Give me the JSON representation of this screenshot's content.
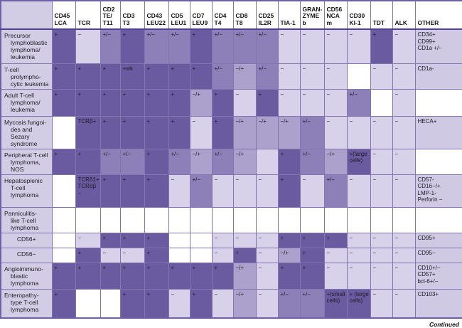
{
  "title": "T-cell lymphoma immunophenotype table",
  "colors": {
    "dark": "#6a5ba0",
    "med": "#8d7fb8",
    "medlight": "#aca0cd",
    "light": "#d7d2e9",
    "label": "#d2cce4",
    "other": "#cfc9e3",
    "white": "#ffffff",
    "border": "#8275b0",
    "outer": "#6f61a6",
    "header_sep": "#4f4190",
    "header_bg": "#ffffff"
  },
  "header": {
    "corner": "",
    "columns": [
      {
        "key": "cd45-lca",
        "label": "CD45\nLCA"
      },
      {
        "key": "tcr",
        "label": "TCR"
      },
      {
        "key": "cd2-te-t11",
        "label": "CD2\nTE/\nT11"
      },
      {
        "key": "cd3-t3",
        "label": "CD3 T3"
      },
      {
        "key": "cd43-leu22",
        "label": "CD43\nLEU22"
      },
      {
        "key": "cd5-leu1",
        "label": "CD5\nLEU1"
      },
      {
        "key": "cd7-leu9",
        "label": "CD7\nLEU9"
      },
      {
        "key": "cd4-t4",
        "label": "CD4\nT4"
      },
      {
        "key": "cd8-t8",
        "label": "CD8 T8"
      },
      {
        "key": "cd25-il2r",
        "label": "CD25\nIL2R"
      },
      {
        "key": "tia-1",
        "label": "TIA-1"
      },
      {
        "key": "granzyme-b",
        "label": "GRAN-\nZYME\nb"
      },
      {
        "key": "cd56-ncam",
        "label": "CD56\nNCA\nm"
      },
      {
        "key": "cd30-ki1",
        "label": "CD30\nKI-1"
      },
      {
        "key": "tdt",
        "label": "TDT"
      },
      {
        "key": "alk",
        "label": "ALK"
      },
      {
        "key": "other",
        "label": "OTHER"
      }
    ]
  },
  "rows": [
    {
      "id": "precursor-lymphoblastic",
      "label": "Precursor\nlymphoblastic\nlymphoma/\nleukemia",
      "center": false,
      "cells": [
        {
          "t": "+",
          "s": "d"
        },
        {
          "t": "−",
          "s": "l"
        },
        {
          "t": "+/−",
          "s": "m"
        },
        {
          "t": "+",
          "s": "d"
        },
        {
          "t": "+/−",
          "s": "m"
        },
        {
          "t": "+/−",
          "s": "m"
        },
        {
          "t": "+",
          "s": "d"
        },
        {
          "t": "+/−",
          "s": "m"
        },
        {
          "t": "+/−",
          "s": "m"
        },
        {
          "t": "+/−",
          "s": "m"
        },
        {
          "t": "−",
          "s": "l"
        },
        {
          "t": "−",
          "s": "l"
        },
        {
          "t": "−",
          "s": "l"
        },
        {
          "t": "−",
          "s": "l"
        },
        {
          "t": "+",
          "s": "d"
        },
        {
          "t": "−",
          "s": "l"
        },
        {
          "t": "CD34+\nCD99+\nCD1a +/−",
          "s": "o"
        }
      ]
    },
    {
      "id": "t-cell-prolymphocytic",
      "label": "T-cell prolympho-\ncytic leukemia",
      "center": false,
      "cells": [
        {
          "t": "+",
          "s": "d"
        },
        {
          "t": "+",
          "s": "d"
        },
        {
          "t": "+",
          "s": "d"
        },
        {
          "t": "+wk",
          "s": "d"
        },
        {
          "t": "+",
          "s": "d"
        },
        {
          "t": "+",
          "s": "d"
        },
        {
          "t": "+",
          "s": "d"
        },
        {
          "t": "+/−",
          "s": "m"
        },
        {
          "t": "−/+",
          "s": "ml"
        },
        {
          "t": "+/−",
          "s": "m"
        },
        {
          "t": "−",
          "s": "l"
        },
        {
          "t": "−",
          "s": "l"
        },
        {
          "t": "−",
          "s": "l"
        },
        {
          "t": "",
          "s": "w"
        },
        {
          "t": "−",
          "s": "l"
        },
        {
          "t": "−",
          "s": "l"
        },
        {
          "t": "CD1a-",
          "s": "o"
        }
      ]
    },
    {
      "id": "adult-t-cell",
      "label": "Adult T-cell\nlymphoma/\nleukemia",
      "center": false,
      "cells": [
        {
          "t": "+",
          "s": "d"
        },
        {
          "t": "+",
          "s": "d"
        },
        {
          "t": "+",
          "s": "d"
        },
        {
          "t": "+",
          "s": "d"
        },
        {
          "t": "+",
          "s": "d"
        },
        {
          "t": "+",
          "s": "d"
        },
        {
          "t": "−/+",
          "s": "ml"
        },
        {
          "t": "+",
          "s": "d"
        },
        {
          "t": "−",
          "s": "l"
        },
        {
          "t": "+",
          "s": "d"
        },
        {
          "t": "−",
          "s": "l"
        },
        {
          "t": "−",
          "s": "l"
        },
        {
          "t": "−",
          "s": "l"
        },
        {
          "t": "+/−",
          "s": "m"
        },
        {
          "t": "",
          "s": "w"
        },
        {
          "t": "−",
          "s": "l"
        },
        {
          "t": "",
          "s": "w"
        }
      ]
    },
    {
      "id": "mycosis-fungoides",
      "label": "Mycosis fungoi-\ndes and Sezary\nsyndrome",
      "center": false,
      "cells": [
        {
          "t": "",
          "s": "w"
        },
        {
          "t": "TCRβ+",
          "s": "d"
        },
        {
          "t": "+",
          "s": "d"
        },
        {
          "t": "+",
          "s": "d"
        },
        {
          "t": "+",
          "s": "d"
        },
        {
          "t": "+",
          "s": "d"
        },
        {
          "t": "−",
          "s": "l"
        },
        {
          "t": "+",
          "s": "d"
        },
        {
          "t": "−/+",
          "s": "ml"
        },
        {
          "t": "−/+",
          "s": "ml"
        },
        {
          "t": "−/+",
          "s": "ml"
        },
        {
          "t": "+/−",
          "s": "m"
        },
        {
          "t": "−",
          "s": "l"
        },
        {
          "t": "−",
          "s": "l"
        },
        {
          "t": "−",
          "s": "l"
        },
        {
          "t": "−",
          "s": "l"
        },
        {
          "t": "HECA+",
          "s": "o"
        }
      ]
    },
    {
      "id": "peripheral-t-cell-nos",
      "label": "Peripheral T-cell\nlymphoma,\nNOS",
      "center": false,
      "cells": [
        {
          "t": "+",
          "s": "d"
        },
        {
          "t": "+",
          "s": "d"
        },
        {
          "t": "+/−",
          "s": "m"
        },
        {
          "t": "+/−",
          "s": "m"
        },
        {
          "t": "+",
          "s": "d"
        },
        {
          "t": "+/−",
          "s": "m"
        },
        {
          "t": "−/+",
          "s": "ml"
        },
        {
          "t": "+/−",
          "s": "m"
        },
        {
          "t": "−/+",
          "s": "ml"
        },
        {
          "t": "",
          "s": "l"
        },
        {
          "t": "+",
          "s": "d"
        },
        {
          "t": "+/−",
          "s": "m"
        },
        {
          "t": "−/+",
          "s": "ml"
        },
        {
          "t": "+(large cells)",
          "s": "d"
        },
        {
          "t": "−",
          "s": "l"
        },
        {
          "t": "−",
          "s": "l"
        },
        {
          "t": "",
          "s": "w"
        }
      ]
    },
    {
      "id": "hepatosplenic",
      "label": "Hepatosplenic\nT-cell\nlymphoma",
      "center": false,
      "cells": [
        {
          "t": "",
          "s": "w"
        },
        {
          "t": "TCRδ1+\nTCRαβ−",
          "s": "d"
        },
        {
          "t": "+",
          "s": "d"
        },
        {
          "t": "+",
          "s": "d"
        },
        {
          "t": "+",
          "s": "d"
        },
        {
          "t": "−",
          "s": "l"
        },
        {
          "t": "+/−",
          "s": "m"
        },
        {
          "t": "−",
          "s": "l"
        },
        {
          "t": "−",
          "s": "l"
        },
        {
          "t": "−",
          "s": "l"
        },
        {
          "t": "+",
          "s": "d"
        },
        {
          "t": "−",
          "s": "l"
        },
        {
          "t": "+/−",
          "s": "m"
        },
        {
          "t": "−",
          "s": "l"
        },
        {
          "t": "−",
          "s": "l"
        },
        {
          "t": "−",
          "s": "l"
        },
        {
          "t": "CD57-\nCD16−/+\nLMP-1-\nPerforin −",
          "s": "o"
        }
      ]
    },
    {
      "id": "panniculitis-like",
      "label": "Panniculitis-\nlike T-cell\nlymphoma",
      "center": false,
      "cells": [
        {
          "t": "",
          "s": "w"
        },
        {
          "t": "",
          "s": "w"
        },
        {
          "t": "",
          "s": "w"
        },
        {
          "t": "",
          "s": "w"
        },
        {
          "t": "",
          "s": "w"
        },
        {
          "t": "",
          "s": "w"
        },
        {
          "t": "",
          "s": "w"
        },
        {
          "t": "",
          "s": "w"
        },
        {
          "t": "",
          "s": "w"
        },
        {
          "t": "",
          "s": "w"
        },
        {
          "t": "",
          "s": "w"
        },
        {
          "t": "",
          "s": "w"
        },
        {
          "t": "",
          "s": "w"
        },
        {
          "t": "",
          "s": "w"
        },
        {
          "t": "",
          "s": "w"
        },
        {
          "t": "",
          "s": "w"
        },
        {
          "t": "",
          "s": "w"
        }
      ]
    },
    {
      "id": "cd56-positive",
      "label": "CD56+",
      "center": true,
      "cells": [
        {
          "t": "",
          "s": "w"
        },
        {
          "t": "−",
          "s": "l"
        },
        {
          "t": "+",
          "s": "d"
        },
        {
          "t": "+",
          "s": "d"
        },
        {
          "t": "+",
          "s": "d"
        },
        {
          "t": "",
          "s": "w"
        },
        {
          "t": "",
          "s": "w"
        },
        {
          "t": "−",
          "s": "l"
        },
        {
          "t": "−",
          "s": "l"
        },
        {
          "t": "−",
          "s": "l"
        },
        {
          "t": "+",
          "s": "d"
        },
        {
          "t": "+",
          "s": "d"
        },
        {
          "t": "+",
          "s": "d"
        },
        {
          "t": "−",
          "s": "l"
        },
        {
          "t": "−",
          "s": "l"
        },
        {
          "t": "−",
          "s": "l"
        },
        {
          "t": "CD95+",
          "s": "o"
        }
      ]
    },
    {
      "id": "cd56-negative",
      "label": "CD56−",
      "center": true,
      "cells": [
        {
          "t": "",
          "s": "w"
        },
        {
          "t": "+",
          "s": "d"
        },
        {
          "t": "−",
          "s": "l"
        },
        {
          "t": "−",
          "s": "l"
        },
        {
          "t": "+",
          "s": "d"
        },
        {
          "t": "",
          "s": "w"
        },
        {
          "t": "",
          "s": "w"
        },
        {
          "t": "−",
          "s": "l"
        },
        {
          "t": "+",
          "s": "d"
        },
        {
          "t": "−",
          "s": "l"
        },
        {
          "t": "−/+",
          "s": "ml"
        },
        {
          "t": "+",
          "s": "d"
        },
        {
          "t": "−",
          "s": "l"
        },
        {
          "t": "−",
          "s": "l"
        },
        {
          "t": "−",
          "s": "l"
        },
        {
          "t": "−",
          "s": "l"
        },
        {
          "t": "CD95−",
          "s": "o"
        }
      ]
    },
    {
      "id": "angioimmunoblastic",
      "label": "Angioimmuno-\nblastic\nlymphoma",
      "center": false,
      "cells": [
        {
          "t": "+",
          "s": "d"
        },
        {
          "t": "+",
          "s": "d"
        },
        {
          "t": "+",
          "s": "d"
        },
        {
          "t": "+",
          "s": "d"
        },
        {
          "t": "+",
          "s": "d"
        },
        {
          "t": "+",
          "s": "d"
        },
        {
          "t": "+",
          "s": "d"
        },
        {
          "t": "+",
          "s": "d"
        },
        {
          "t": "−/+",
          "s": "ml"
        },
        {
          "t": "−",
          "s": "l"
        },
        {
          "t": "+",
          "s": "d"
        },
        {
          "t": "+",
          "s": "d"
        },
        {
          "t": "−",
          "s": "l"
        },
        {
          "t": "−",
          "s": "l"
        },
        {
          "t": "−",
          "s": "l"
        },
        {
          "t": "−",
          "s": "l"
        },
        {
          "t": "CD10+/−\nCD57+\nbcl-6+/−",
          "s": "o"
        }
      ]
    },
    {
      "id": "enteropathy-type",
      "label": "Enteropathy-\ntype T-cell\nlymphoma",
      "center": false,
      "cells": [
        {
          "t": "+",
          "s": "d"
        },
        {
          "t": "",
          "s": "w"
        },
        {
          "t": "",
          "s": "w"
        },
        {
          "t": "+",
          "s": "d"
        },
        {
          "t": "+",
          "s": "d"
        },
        {
          "t": "−",
          "s": "l"
        },
        {
          "t": "+",
          "s": "d"
        },
        {
          "t": "−",
          "s": "l"
        },
        {
          "t": "−/+",
          "s": "ml"
        },
        {
          "t": "−",
          "s": "l"
        },
        {
          "t": "+/−",
          "s": "m"
        },
        {
          "t": "+/−",
          "s": "m"
        },
        {
          "t": "+(small cells)",
          "s": "d"
        },
        {
          "t": "+ (large cells)",
          "s": "d"
        },
        {
          "t": "−",
          "s": "l"
        },
        {
          "t": "−",
          "s": "l"
        },
        {
          "t": "CD103+",
          "s": "o"
        }
      ]
    }
  ],
  "footer": {
    "continued": "Continued"
  }
}
